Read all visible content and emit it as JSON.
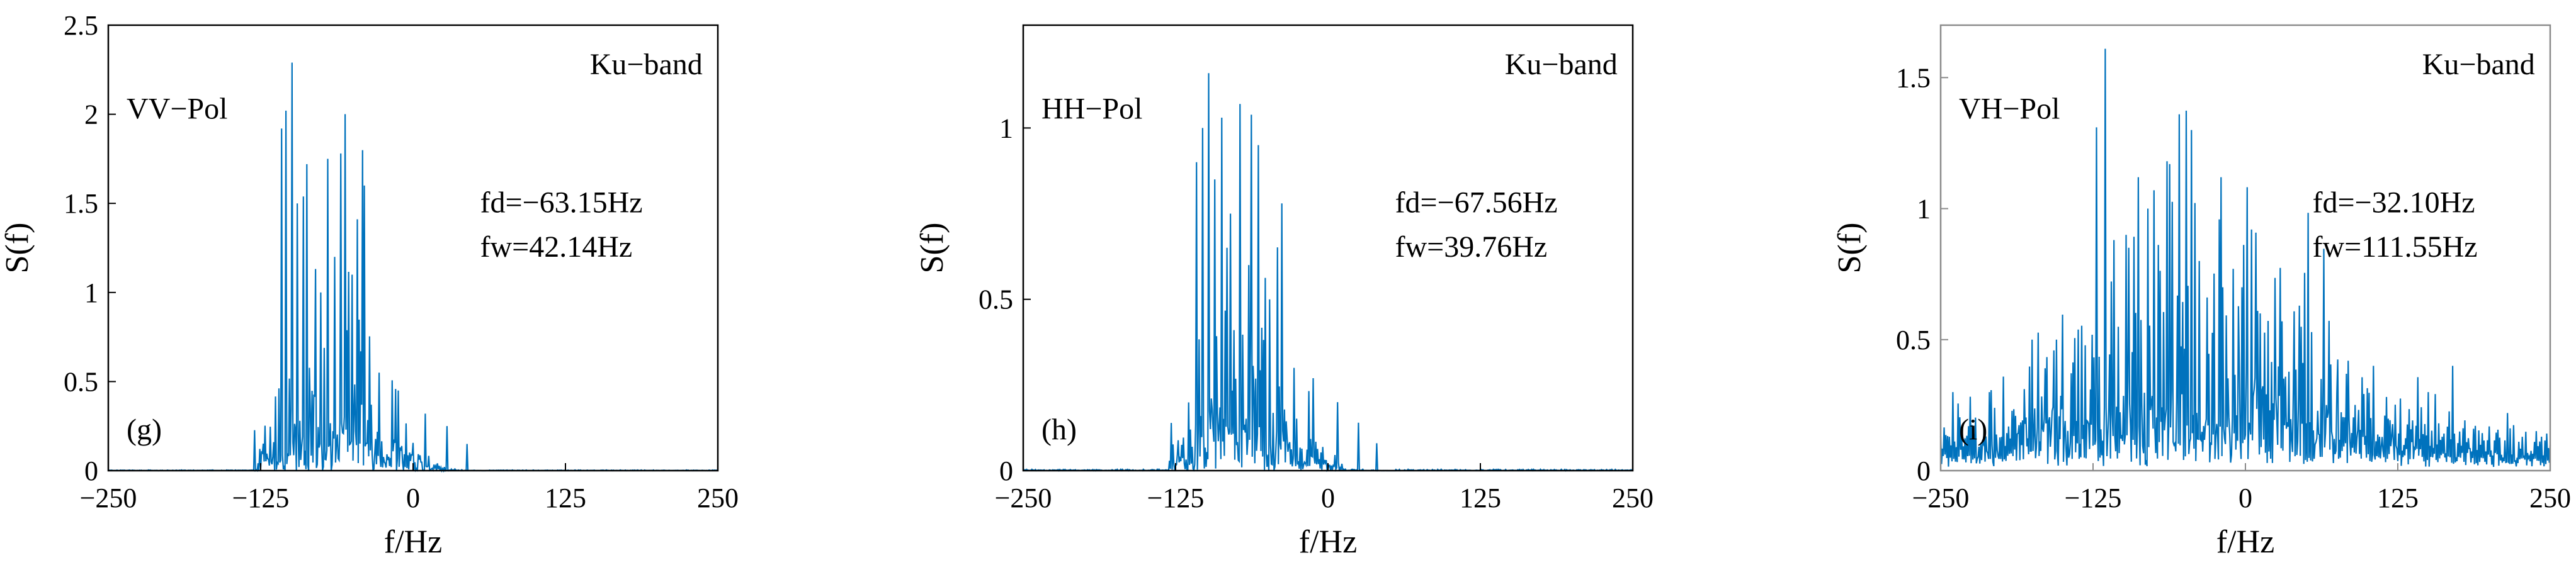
{
  "figure": {
    "line_color": "#0072BD",
    "axis_color": "#000000",
    "faded_axis_color": "#8a8a8a"
  },
  "chart_data": [
    {
      "type": "line",
      "panel": "(g)",
      "band": "Ku−band",
      "pol": "VV−Pol",
      "fd_text": "fd=−63.15Hz",
      "fw_text": "fw=42.14Hz",
      "xlabel": "f/Hz",
      "ylabel": "S(f)",
      "xlim": [
        -250,
        250
      ],
      "ylim": [
        0,
        2.5
      ],
      "xticks": [
        -250,
        -125,
        0,
        125,
        250
      ],
      "xtick_labels": [
        "−250",
        "−125",
        "0",
        "125",
        "250"
      ],
      "yticks": [
        0,
        0.5,
        1,
        1.5,
        2,
        2.5
      ],
      "ytick_labels": [
        "0",
        "0.5",
        "1",
        "1.5",
        "2",
        "2.5"
      ],
      "faded": false,
      "spectrum": {
        "center": -63.15,
        "width": 42.14,
        "peaks": [
          [
            -108,
            1.92
          ],
          [
            -104,
            2.02
          ],
          [
            -99,
            2.29
          ],
          [
            -95,
            1.5
          ],
          [
            -87,
            1.72
          ],
          [
            -76,
            1.0
          ],
          [
            -70,
            1.75
          ],
          [
            -64,
            1.2
          ],
          [
            -59,
            1.78
          ],
          [
            -50,
            1.1
          ],
          [
            -40,
            1.6
          ],
          [
            -28,
            0.55
          ],
          [
            -12,
            0.45
          ],
          [
            10,
            0.32
          ],
          [
            28,
            0.25
          ],
          [
            44,
            0.15
          ]
        ],
        "baseline": 0.0,
        "lo": -130,
        "hi": 60
      }
    },
    {
      "type": "line",
      "panel": "(h)",
      "band": "Ku−band",
      "pol": "HH−Pol",
      "fd_text": "fd=−67.56Hz",
      "fw_text": "fw=39.76Hz",
      "xlabel": "f/Hz",
      "ylabel": "S(f)",
      "xlim": [
        -250,
        250
      ],
      "ylim": [
        0,
        1.3
      ],
      "xticks": [
        -250,
        -125,
        0,
        125,
        250
      ],
      "xtick_labels": [
        "−250",
        "−125",
        "0",
        "125",
        "250"
      ],
      "yticks": [
        0,
        0.5,
        1
      ],
      "ytick_labels": [
        "0",
        "0.5",
        "1"
      ],
      "faded": false,
      "spectrum": {
        "center": -67.56,
        "width": 39.76,
        "peaks": [
          [
            -108,
            0.9
          ],
          [
            -103,
            1.0
          ],
          [
            -98,
            1.16
          ],
          [
            -93,
            0.85
          ],
          [
            -87,
            1.03
          ],
          [
            -80,
            0.75
          ],
          [
            -72,
            1.07
          ],
          [
            -65,
            0.6
          ],
          [
            -57,
            0.95
          ],
          [
            -48,
            0.5
          ],
          [
            -38,
            0.78
          ],
          [
            -28,
            0.3
          ],
          [
            -12,
            0.27
          ],
          [
            8,
            0.2
          ],
          [
            25,
            0.14
          ],
          [
            40,
            0.08
          ]
        ],
        "baseline": 0.0,
        "lo": -130,
        "hi": 55
      }
    },
    {
      "type": "line",
      "panel": "(i)",
      "band": "Ku−band",
      "pol": "VH−Pol",
      "fd_text": "fd=−32.10Hz",
      "fw_text": "fw=111.55Hz",
      "xlabel": "f/Hz",
      "ylabel": "S(f)",
      "xlim": [
        -250,
        250
      ],
      "ylim": [
        0,
        1.7
      ],
      "xticks": [
        -250,
        -125,
        0,
        125,
        250
      ],
      "xtick_labels": [
        "−250",
        "−125",
        "0",
        "125",
        "250"
      ],
      "yticks": [
        0,
        0.5,
        1,
        1.5
      ],
      "ytick_labels": [
        "0",
        "0.5",
        "1",
        "1.5"
      ],
      "faded": true,
      "spectrum": {
        "center": -32.1,
        "width": 111.55,
        "peaks": [
          [
            -122,
            1.31
          ],
          [
            -115,
            1.61
          ],
          [
            -108,
            0.88
          ],
          [
            -98,
            0.9
          ],
          [
            -88,
            1.12
          ],
          [
            -80,
            1.0
          ],
          [
            -75,
            1.07
          ],
          [
            -62,
            1.17
          ],
          [
            -54,
            1.36
          ],
          [
            -44,
            1.3
          ],
          [
            -38,
            0.8
          ],
          [
            -20,
            1.12
          ],
          [
            -3,
            0.7
          ],
          [
            5,
            0.92
          ],
          [
            12,
            0.6
          ],
          [
            30,
            0.57
          ],
          [
            62,
            0.35
          ],
          [
            105,
            0.4
          ],
          [
            150,
            0.3
          ],
          [
            170,
            0.4
          ],
          [
            215,
            0.22
          ],
          [
            -175,
            0.5
          ],
          [
            -155,
            0.5
          ],
          [
            -210,
            0.3
          ],
          [
            -240,
            0.3
          ]
        ],
        "baseline": 0.07,
        "lo": -250,
        "hi": 250
      }
    }
  ]
}
